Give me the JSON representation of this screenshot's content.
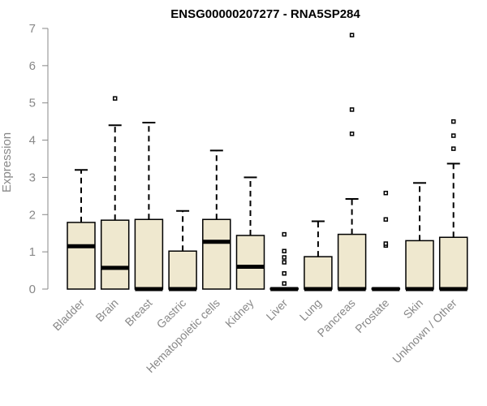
{
  "chart_data": {
    "type": "boxplot",
    "title": "ENSG00000207277 - RNA5SP284",
    "ylabel": "Expression",
    "xlabel": "",
    "ylim": [
      0,
      7
    ],
    "yticks": [
      0,
      1,
      2,
      3,
      4,
      5,
      6,
      7
    ],
    "grid": false,
    "colors": {
      "box_fill": "#efe8cf",
      "stroke": "#000000",
      "axis": "#888888"
    },
    "categories": [
      "Bladder",
      "Brain",
      "Breast",
      "Gastric",
      "Hematopoietic cells",
      "Kidney",
      "Liver",
      "Lung",
      "Pancreas",
      "Prostate",
      "Skin",
      "Unknown / Other"
    ],
    "boxes": [
      {
        "q1": 0,
        "median": 1.15,
        "q3": 1.79,
        "whisker_low": 0,
        "whisker_high": 3.2,
        "outliers": []
      },
      {
        "q1": 0,
        "median": 0.57,
        "q3": 1.85,
        "whisker_low": 0,
        "whisker_high": 4.4,
        "outliers": [
          5.12
        ]
      },
      {
        "q1": 0,
        "median": 0,
        "q3": 1.87,
        "whisker_low": 0,
        "whisker_high": 4.47,
        "outliers": []
      },
      {
        "q1": 0,
        "median": 0,
        "q3": 1.02,
        "whisker_low": 0,
        "whisker_high": 2.1,
        "outliers": []
      },
      {
        "q1": 0,
        "median": 1.27,
        "q3": 1.87,
        "whisker_low": 0,
        "whisker_high": 3.72,
        "outliers": []
      },
      {
        "q1": 0,
        "median": 0.6,
        "q3": 1.44,
        "whisker_low": 0,
        "whisker_high": 3.0,
        "outliers": []
      },
      {
        "q1": 0,
        "median": 0,
        "q3": 0.02,
        "whisker_low": 0,
        "whisker_high": 0.02,
        "outliers": [
          0.15,
          0.42,
          0.72,
          0.85,
          1.02,
          1.47
        ]
      },
      {
        "q1": 0,
        "median": 0,
        "q3": 0.87,
        "whisker_low": 0,
        "whisker_high": 1.82,
        "outliers": []
      },
      {
        "q1": 0,
        "median": 0,
        "q3": 1.47,
        "whisker_low": 0,
        "whisker_high": 2.42,
        "outliers": [
          4.17,
          4.82,
          6.82
        ]
      },
      {
        "q1": 0,
        "median": 0,
        "q3": 0.02,
        "whisker_low": 0,
        "whisker_high": 0.02,
        "outliers": [
          1.17,
          1.22,
          1.87,
          2.58
        ]
      },
      {
        "q1": 0,
        "median": 0,
        "q3": 1.3,
        "whisker_low": 0,
        "whisker_high": 2.85,
        "outliers": []
      },
      {
        "q1": 0,
        "median": 0,
        "q3": 1.39,
        "whisker_low": 0,
        "whisker_high": 3.37,
        "outliers": [
          3.77,
          4.12,
          4.5
        ]
      }
    ]
  }
}
